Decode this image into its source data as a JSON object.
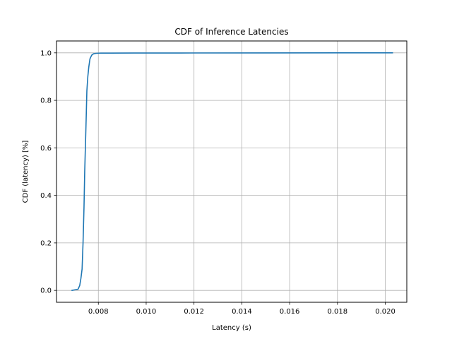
{
  "chart_data": {
    "type": "line",
    "title": "CDF of Inference Latencies",
    "xlabel": "Latency (s)",
    "ylabel": "CDF (latency) [%]",
    "xlim": [
      0.00625,
      0.0209
    ],
    "ylim": [
      -0.05,
      1.05
    ],
    "xticks": [
      0.008,
      0.01,
      0.012,
      0.014,
      0.016,
      0.018,
      0.02
    ],
    "xtick_labels": [
      "0.008",
      "0.010",
      "0.012",
      "0.014",
      "0.016",
      "0.018",
      "0.020"
    ],
    "yticks": [
      0.0,
      0.2,
      0.4,
      0.6,
      0.8,
      1.0
    ],
    "ytick_labels": [
      "0.0",
      "0.2",
      "0.4",
      "0.6",
      "0.8",
      "1.0"
    ],
    "grid": true,
    "series": [
      {
        "color": "#1f77b4",
        "x": [
          0.0069,
          0.007,
          0.00715,
          0.00722,
          0.00727,
          0.00732,
          0.00736,
          0.0074,
          0.00743,
          0.00746,
          0.00749,
          0.00752,
          0.00756,
          0.0076,
          0.00765,
          0.00772,
          0.0078,
          0.0079,
          0.0081,
          0.0085,
          0.0095,
          0.012,
          0.015,
          0.018,
          0.0203
        ],
        "y": [
          0.0,
          0.002,
          0.005,
          0.02,
          0.05,
          0.09,
          0.2,
          0.35,
          0.5,
          0.61,
          0.72,
          0.84,
          0.9,
          0.94,
          0.975,
          0.99,
          0.996,
          0.998,
          0.999,
          0.999,
          0.9992,
          0.9995,
          0.9997,
          0.9999,
          1.0
        ]
      }
    ]
  }
}
